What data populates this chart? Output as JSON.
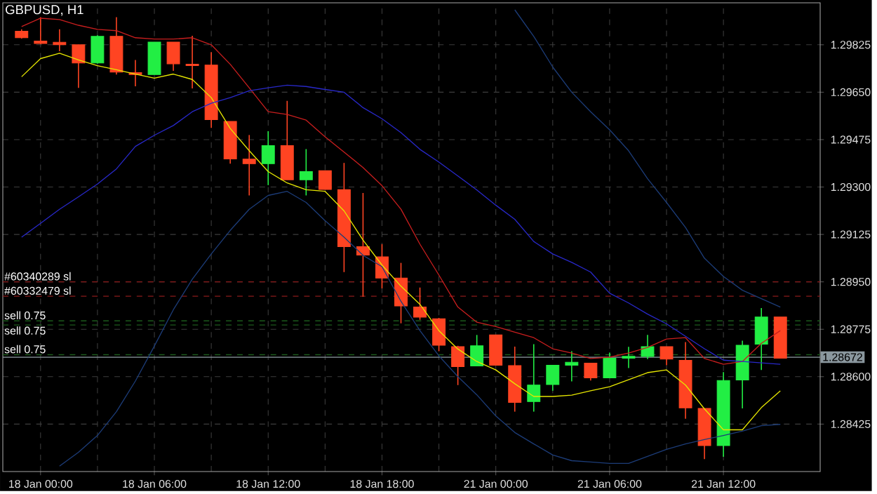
{
  "chart_data": {
    "type": "candlestick",
    "title": "GBPUSD, H1",
    "categories": [
      null,
      "18 Jan 00:00",
      null,
      null,
      null,
      null,
      null,
      "18 Jan 06:00",
      null,
      null,
      null,
      null,
      null,
      "18 Jan 12:00",
      null,
      null,
      null,
      null,
      null,
      "18 Jan 18:00",
      null,
      null,
      null,
      null,
      null,
      "21 Jan 00:00",
      null,
      null,
      null,
      null,
      null,
      "21 Jan 06:00",
      null,
      null,
      null,
      null,
      null,
      "21 Jan 12:00",
      null,
      null,
      null
    ],
    "ohlc": [
      [
        1.29875,
        1.29882,
        1.29848,
        1.29851
      ],
      [
        1.29839,
        1.29927,
        1.29828,
        1.2983
      ],
      [
        1.29834,
        1.29882,
        1.29801,
        1.29825
      ],
      [
        1.29825,
        1.29825,
        1.29666,
        1.29758
      ],
      [
        1.29758,
        1.2986,
        1.29755,
        1.29856
      ],
      [
        1.29856,
        1.29927,
        1.29715,
        1.29724
      ],
      [
        1.29722,
        1.29769,
        1.29672,
        1.29715
      ],
      [
        1.29715,
        1.29835,
        1.29715,
        1.29835
      ],
      [
        1.29835,
        1.29835,
        1.29729,
        1.29755
      ],
      [
        1.29753,
        1.29858,
        1.29664,
        1.29748
      ],
      [
        1.2975,
        1.29798,
        1.29518,
        1.29549
      ],
      [
        1.29542,
        1.29542,
        1.29386,
        1.29404
      ],
      [
        1.29403,
        1.29492,
        1.29269,
        1.29386
      ],
      [
        1.29386,
        1.29506,
        1.29307,
        1.29453
      ],
      [
        1.29453,
        1.29618,
        1.29327,
        1.29327
      ],
      [
        1.29327,
        1.2944,
        1.29269,
        1.29357
      ],
      [
        1.2936,
        1.2936,
        1.29291,
        1.29291
      ],
      [
        1.2929,
        1.29389,
        1.28986,
        1.2908
      ],
      [
        1.2908,
        1.29278,
        1.28895,
        1.29049
      ],
      [
        1.29042,
        1.29089,
        1.28926,
        1.28964
      ],
      [
        1.28964,
        1.2902,
        1.28797,
        1.28861
      ],
      [
        1.28857,
        1.28929,
        1.2881,
        1.2882
      ],
      [
        1.28814,
        1.28817,
        1.28694,
        1.28716
      ],
      [
        1.28711,
        1.28714,
        1.28569,
        1.28637
      ],
      [
        1.2864,
        1.28754,
        1.2864,
        1.28714
      ],
      [
        1.28754,
        1.28754,
        1.28642,
        1.28642
      ],
      [
        1.28641,
        1.28711,
        1.28471,
        1.28505
      ],
      [
        1.28508,
        1.2872,
        1.28471,
        1.28569
      ],
      [
        1.28571,
        1.28642,
        1.28548,
        1.28642
      ],
      [
        1.28642,
        1.28694,
        1.28583,
        1.28653
      ],
      [
        1.2865,
        1.2865,
        1.28586,
        1.28596
      ],
      [
        1.28596,
        1.28689,
        1.28596,
        1.28668
      ],
      [
        1.28668,
        1.2871,
        1.28632,
        1.28675
      ],
      [
        1.28675,
        1.28754,
        1.28665,
        1.28711
      ],
      [
        1.28711,
        1.28711,
        1.28642,
        1.28665
      ],
      [
        1.2866,
        1.28728,
        1.28445,
        1.28485
      ],
      [
        1.28483,
        1.28483,
        1.28296,
        1.28346
      ],
      [
        1.28346,
        1.28617,
        1.28304,
        1.28586
      ],
      [
        1.28588,
        1.28733,
        1.28483,
        1.28716
      ],
      [
        1.2872,
        1.28853,
        1.28625,
        1.2882
      ],
      [
        1.2882,
        1.2882,
        1.28668,
        1.28668
      ]
    ],
    "colors": [
      "#ff4422",
      "#ff4422",
      "#ff4422",
      "#ff4422",
      "#22ee44",
      "#ff4422",
      "#ff4422",
      "#22ee44",
      "#ff4422",
      "#ff4422",
      "#ff4422",
      "#ff4422",
      "#ff4422",
      "#22ee44",
      "#ff4422",
      "#22ee44",
      "#ff4422",
      "#ff4422",
      "#ff4422",
      "#ff4422",
      "#ff4422",
      "#ff4422",
      "#ff4422",
      "#ff4422",
      "#22ee44",
      "#ff4422",
      "#ff4422",
      "#22ee44",
      "#22ee44",
      "#22ee44",
      "#ff4422",
      "#22ee44",
      "#22ee44",
      "#22ee44",
      "#ff4422",
      "#ff4422",
      "#ff4422",
      "#22ee44",
      "#22ee44",
      "#22ee44",
      "#ff4422"
    ],
    "series": [
      {
        "type": "line",
        "color": "#e6e600",
        "values": [
          1.29707,
          1.29774,
          1.29794,
          1.29769,
          1.29748,
          1.29733,
          1.29717,
          1.29702,
          1.29717,
          1.29697,
          1.2963,
          1.29516,
          1.29434,
          1.29357,
          1.29315,
          1.2929,
          1.29284,
          1.29212,
          1.29104,
          1.29012,
          1.28934,
          1.28867,
          1.2877,
          1.28702,
          1.28656,
          1.28625,
          1.28574,
          1.28527,
          1.28527,
          1.28532,
          1.28548,
          1.28563,
          1.28589,
          1.28615,
          1.28625,
          1.28569,
          1.28481,
          1.28404,
          1.28404,
          1.28486,
          1.28548
        ]
      },
      {
        "type": "line",
        "color": "#c81e1e",
        "values": [
          1.29892,
          1.29923,
          1.29918,
          1.29897,
          1.29882,
          1.29877,
          1.29851,
          1.29846,
          1.29846,
          1.29851,
          1.29825,
          1.29753,
          1.29666,
          1.29578,
          1.29568,
          1.29547,
          1.29485,
          1.29429,
          1.29372,
          1.29305,
          1.29218,
          1.29089,
          1.28975,
          1.28857,
          1.28801,
          1.28785,
          1.28764,
          1.28744,
          1.28703,
          1.28687,
          1.28667,
          1.28672,
          1.28687,
          1.28708,
          1.28739,
          1.28744,
          1.28667,
          1.28646,
          1.28656,
          1.28723,
          1.2877
        ]
      },
      {
        "type": "line",
        "color": "#2828c8",
        "values": [
          1.29115,
          1.29166,
          1.29218,
          1.29264,
          1.29311,
          1.29367,
          1.2945,
          1.29491,
          1.29527,
          1.29578,
          1.29609,
          1.2963,
          1.29655,
          1.29666,
          1.29676,
          1.29671,
          1.2966,
          1.2965,
          1.29593,
          1.29552,
          1.29501,
          1.29439,
          1.29392,
          1.29341,
          1.29289,
          1.29233,
          1.29181,
          1.29099,
          1.29053,
          1.29022,
          1.28986,
          1.28908,
          1.28872,
          1.28831,
          1.28795,
          1.28749,
          1.28703,
          1.28661,
          1.28656,
          1.28651,
          1.28646
        ]
      },
      {
        "type": "line",
        "color": "#1c3c78",
        "values": [
          null,
          null,
          1.2827,
          1.28321,
          1.28383,
          1.28471,
          1.28584,
          1.28713,
          1.28847,
          1.2896,
          1.29053,
          1.2914,
          1.29218,
          1.29269,
          1.29284,
          1.29243,
          1.29176,
          1.29115,
          1.29048,
          1.29006,
          1.28878,
          1.2877,
          1.28677,
          1.286,
          1.28533,
          1.28455,
          1.28394,
          1.28352,
          1.28311,
          1.2829,
          1.28285,
          1.2828,
          1.2828,
          1.28306,
          1.28332,
          1.28352,
          1.28368,
          1.28383,
          1.28399,
          1.28419,
          1.28424
        ]
      },
      {
        "type": "line",
        "color": "#1c3c78",
        "values": [
          null,
          null,
          null,
          null,
          null,
          null,
          null,
          null,
          null,
          null,
          null,
          null,
          null,
          null,
          null,
          null,
          null,
          null,
          null,
          null,
          null,
          null,
          null,
          null,
          null,
          null,
          1.29954,
          1.29856,
          1.29743,
          1.2965,
          1.29578,
          1.29511,
          1.29434,
          1.29331,
          1.29243,
          1.29151,
          1.29037,
          1.2897,
          1.28919,
          1.28888,
          1.28857
        ]
      }
    ],
    "ylim": [
      1.2825,
      1.2998
    ],
    "yticks": [
      1.28425,
      {
        "value": 1.286,
        "label": "1.28600"
      },
      1.28775,
      {
        "value": 1.2895,
        "label": "1.28950"
      },
      1.29125,
      {
        "value": 1.293,
        "label": "1.29300"
      },
      1.29475,
      {
        "value": 1.2965,
        "label": "1.29650"
      },
      1.29825
    ],
    "grid": true,
    "ref_lines": [
      {
        "axis": "y",
        "value": 1.2895,
        "label": "#60340289 sl",
        "color": "#8b1a1a",
        "line_style": "dashed"
      },
      {
        "axis": "y",
        "value": 1.28897,
        "label": "#60332479 sl",
        "color": "#8b1a1a",
        "line_style": "dashed"
      },
      {
        "axis": "y",
        "value": 1.28806,
        "label": "sell 0.75",
        "color": "#1c5a1c",
        "line_style": "dashed"
      },
      {
        "axis": "y",
        "value": 1.28791,
        "label": "sell 0.75",
        "color": "#1c5a1c",
        "line_style": "dashed"
      },
      {
        "axis": "y",
        "value": 1.28681,
        "label": "sell 0.75",
        "color": "#1c5a1c",
        "line_style": "dashed"
      },
      {
        "axis": "y",
        "value": 1.28672,
        "label": "1.28672",
        "color": "#8a979e",
        "line_style": "solid"
      }
    ]
  }
}
